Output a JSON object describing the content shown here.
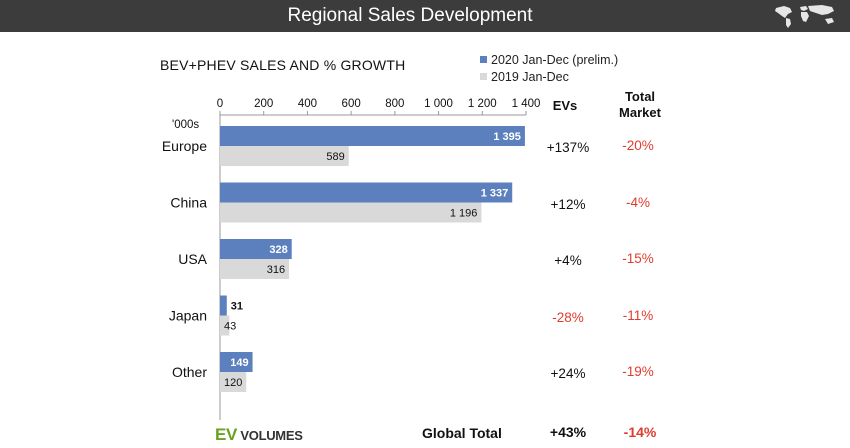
{
  "header": {
    "title": "Regional Sales Development",
    "icon": "world-map-icon"
  },
  "legend": [
    {
      "label": "2020 Jan-Dec (prelim.)",
      "color": "#5b80bd"
    },
    {
      "label": "2019 Jan-Dec",
      "color": "#d9d9d9"
    }
  ],
  "columns": {
    "evs": "EVs",
    "total_market": "Total Market"
  },
  "chart_data": {
    "type": "bar",
    "orientation": "horizontal",
    "title": "BEV+PHEV SALES AND % GROWTH",
    "unit_label": "'000s",
    "categories": [
      "Europe",
      "China",
      "USA",
      "Japan",
      "Other"
    ],
    "series": [
      {
        "name": "2020 Jan-Dec (prelim.)",
        "values": [
          1395,
          1337,
          328,
          31,
          149
        ],
        "color": "#5b80bd"
      },
      {
        "name": "2019 Jan-Dec",
        "values": [
          589,
          1196,
          316,
          43,
          120
        ],
        "color": "#d9d9d9"
      }
    ],
    "xlim": [
      0,
      1400
    ],
    "xticks": [
      0,
      200,
      400,
      600,
      800,
      1000,
      1200,
      1400
    ],
    "xtick_labels": [
      "0",
      "200",
      "400",
      "600",
      "800",
      "1 000",
      "1 200",
      "1 400"
    ],
    "value_labels_2020": [
      "1 395",
      "1 337",
      "328",
      "31",
      "149"
    ],
    "value_labels_2019": [
      "589",
      "1 196",
      "316",
      "43",
      "120"
    ]
  },
  "growth": {
    "ev": [
      "+137%",
      "+12%",
      "+4%",
      "-28%",
      "+24%"
    ],
    "market": [
      "-20%",
      "-4%",
      "-15%",
      "-11%",
      "-19%"
    ]
  },
  "footer": {
    "logo_ev": "EV",
    "logo_rest": "VOLUMES",
    "label": "Global Total",
    "ev_total": "+43%",
    "market_total": "-14%"
  },
  "colors": {
    "positive": "#111111",
    "negative": "#e03c2e",
    "axis": "#999999"
  }
}
